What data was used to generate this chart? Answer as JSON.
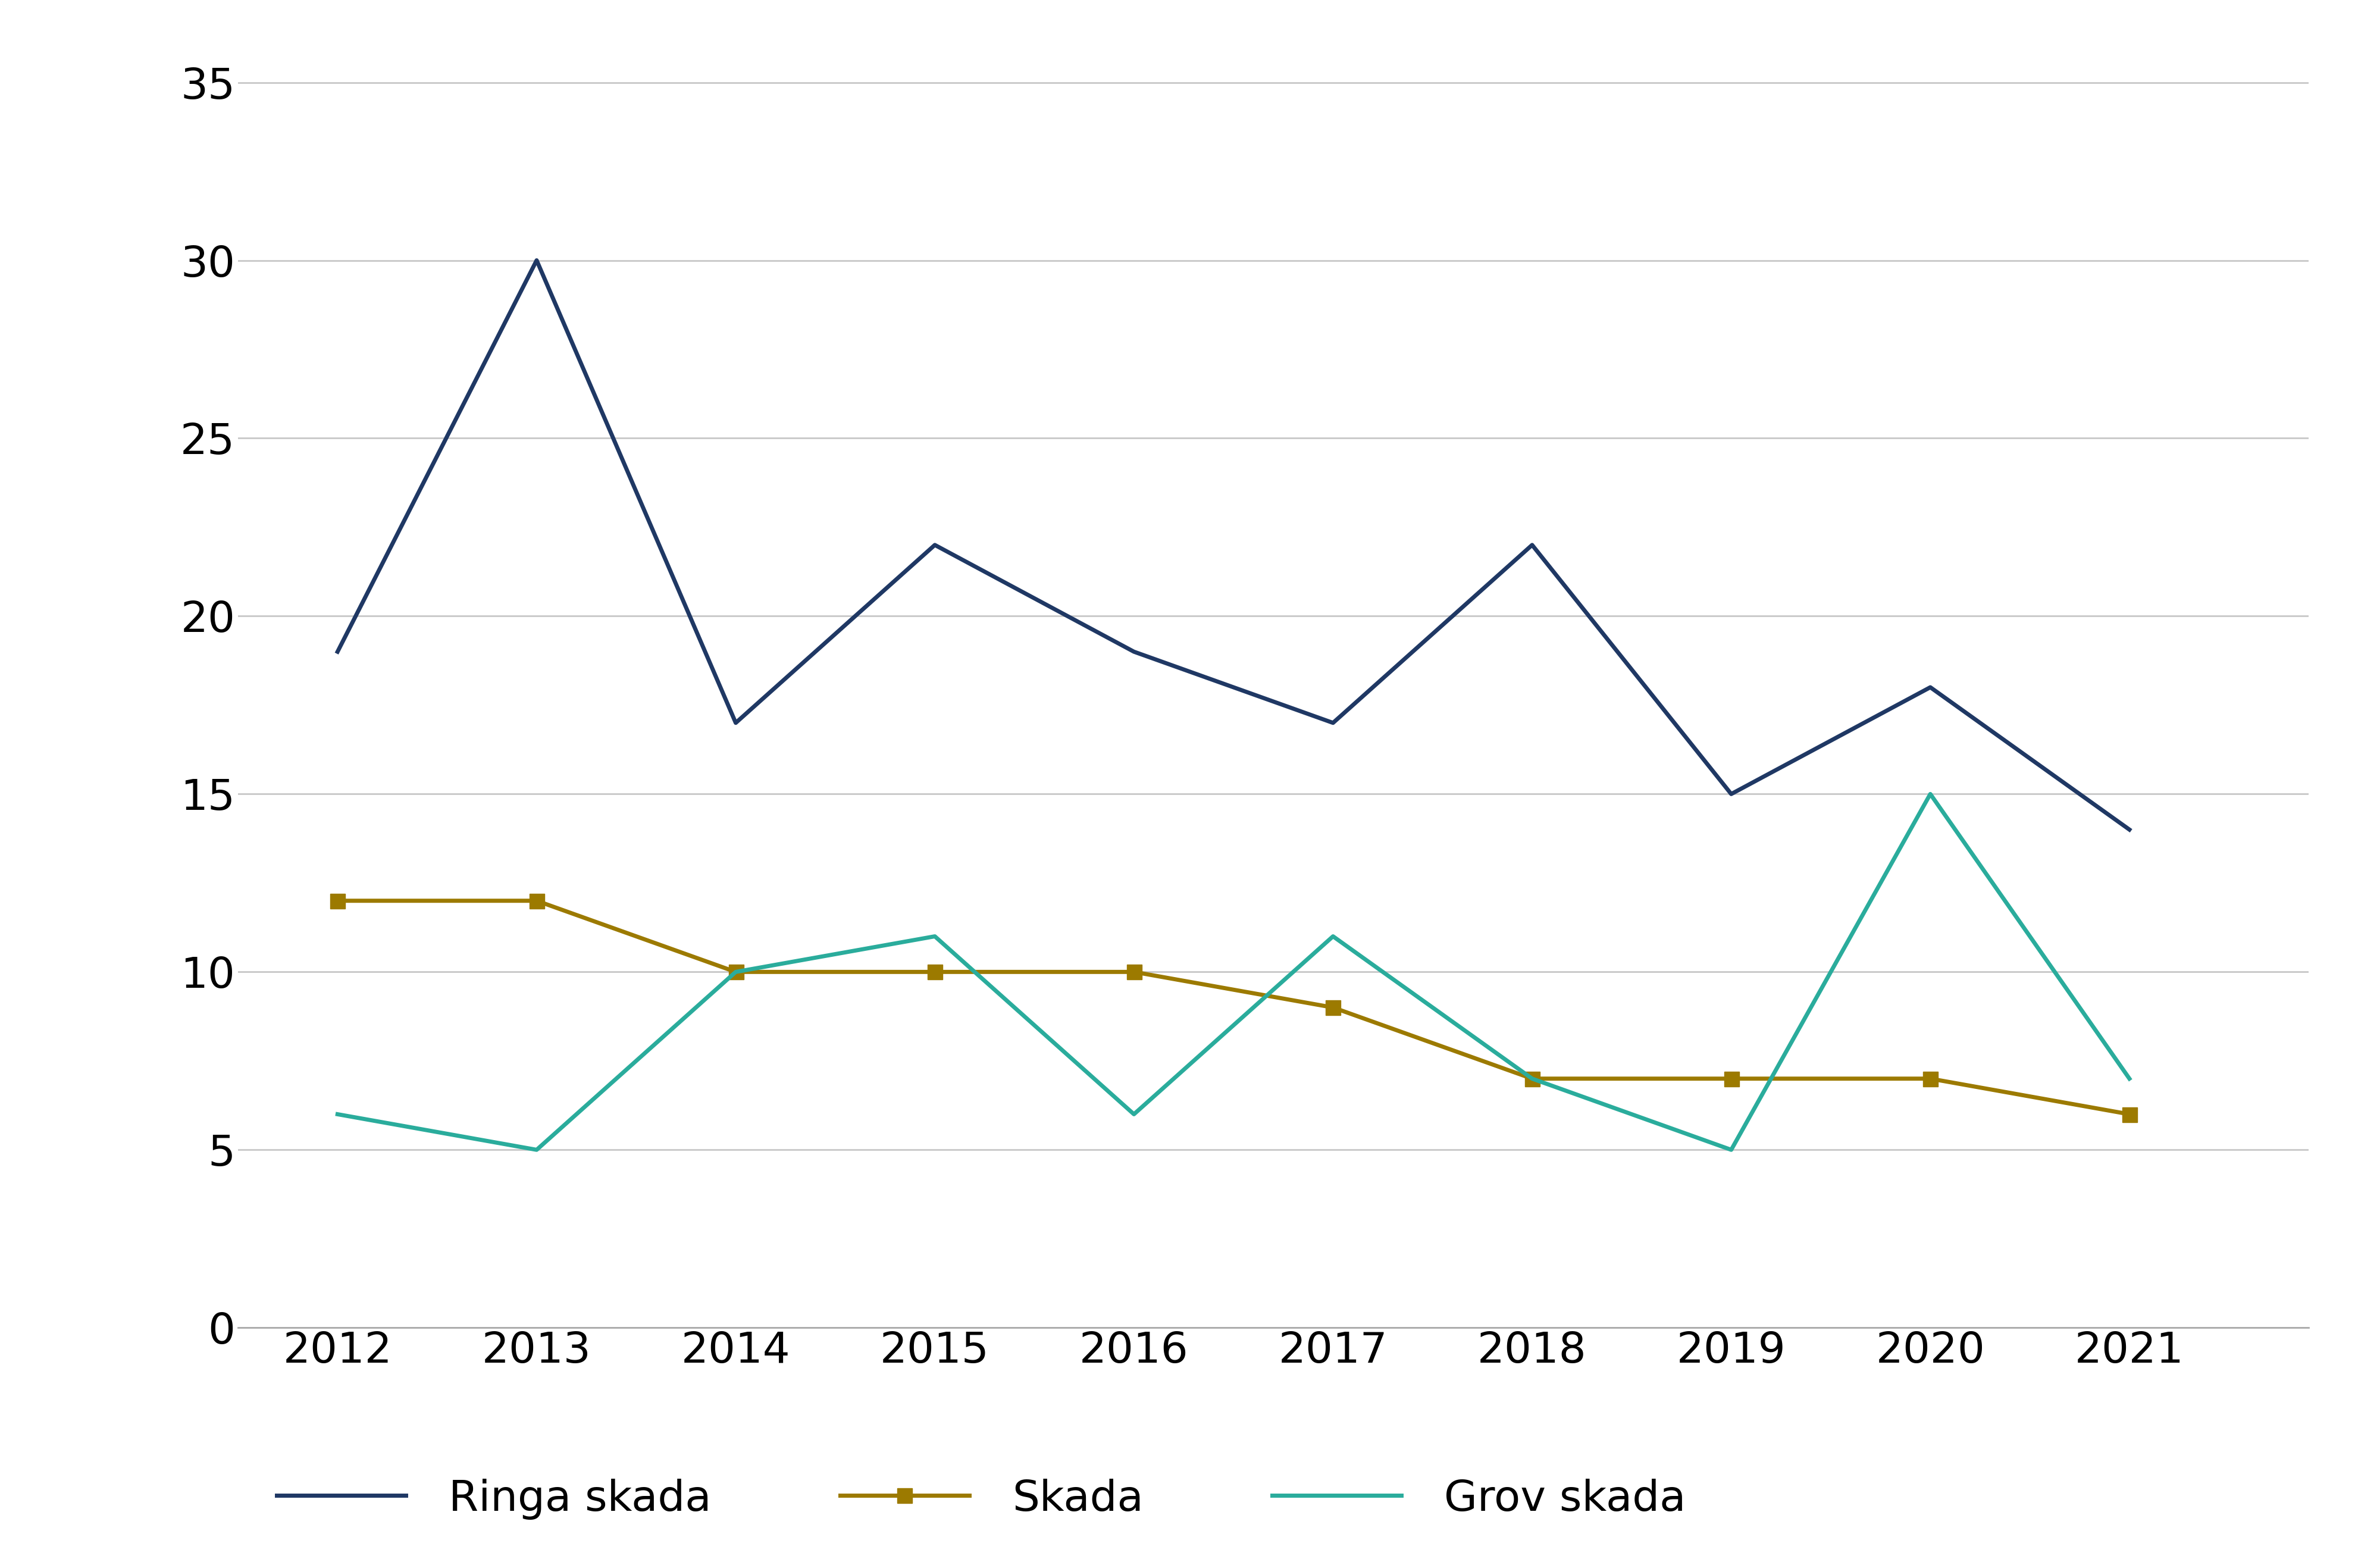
{
  "years": [
    2012,
    2013,
    2014,
    2015,
    2016,
    2017,
    2018,
    2019,
    2020,
    2021
  ],
  "ringa_skada": [
    19,
    30,
    17,
    22,
    19,
    17,
    22,
    15,
    18,
    14
  ],
  "skada": [
    12,
    12,
    10,
    10,
    10,
    9,
    7,
    7,
    7,
    6
  ],
  "grov_skada": [
    6,
    5,
    10,
    11,
    6,
    11,
    7,
    5,
    15,
    7
  ],
  "ringa_color": "#1f3864",
  "skada_color": "#9c7a00",
  "grov_color": "#2aac9c",
  "background_color": "#ffffff",
  "grid_color": "#c8c8c8",
  "ylim_min": 0,
  "ylim_max": 36,
  "yticks": [
    0,
    5,
    10,
    15,
    20,
    25,
    30,
    35
  ],
  "legend_labels": [
    "Ringa skada",
    "Skada",
    "Grov skada"
  ],
  "line_width": 5.0,
  "marker_size": 18,
  "font_size_ticks": 52,
  "font_size_legend": 52
}
